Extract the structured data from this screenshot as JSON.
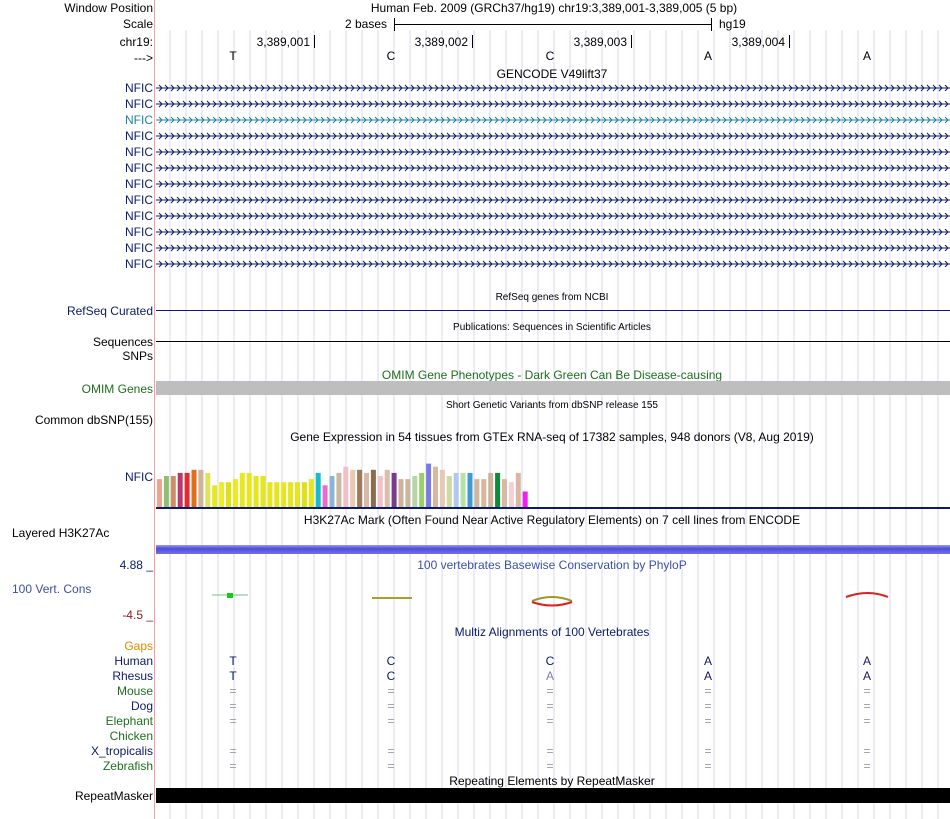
{
  "labels": {
    "window_position": "Window Position",
    "scale": "Scale",
    "chrom": "chr19:",
    "strand": "--->",
    "refseq": "RefSeq Curated",
    "sequences": "Sequences",
    "snps": "SNPs",
    "omim": "OMIM Genes",
    "dbsnp": "Common dbSNP(155)",
    "gtex_gene": "NFIC",
    "h3k27ac": "Layered H3K27Ac",
    "phylop_max": "4.88 _",
    "phylop_min": "-4.5 _",
    "cons": "100 Vert. Cons",
    "repeatmasker": "RepeatMasker"
  },
  "header": {
    "assembly": "Human Feb. 2009 (GRCh37/hg19)   chr19:3,389,001-3,389,005 (5 bp)",
    "scale_text": "2 bases",
    "db": "hg19",
    "ticks": [
      "3,389,001",
      "3,389,002",
      "3,389,003",
      "3,389,004"
    ],
    "bases": [
      "T",
      "C",
      "C",
      "A",
      "A"
    ]
  },
  "gencode": {
    "title": "GENCODE V49lift37",
    "transcripts": [
      "NFIC",
      "NFIC",
      "NFIC",
      "NFIC",
      "NFIC",
      "NFIC",
      "NFIC",
      "NFIC",
      "NFIC",
      "NFIC",
      "NFIC",
      "NFIC"
    ],
    "highlight_index": 2
  },
  "titles": {
    "refseq": "RefSeq genes from NCBI",
    "sequences": "Publications: Sequences in Scientific Articles",
    "omim": "OMIM Gene Phenotypes - Dark Green Can Be Disease-causing",
    "dbsnp": "Short Genetic Variants from dbSNP release 155",
    "gtex": "Gene Expression in 54 tissues from GTEx RNA-seq of 17382 samples, 948 donors (V8, Aug 2019)",
    "h3k27ac": "H3K27Ac Mark (Often Found Near Active Regulatory Elements) on 7 cell lines from ENCODE",
    "phylop": "100 vertebrates Basewise Conservation by PhyloP",
    "multiz": "Multiz Alignments of 100 Vertebrates",
    "repeatmasker": "Repeating Elements by RepeatMasker"
  },
  "gtex_bars": {
    "values": [
      0.45,
      0.5,
      0.5,
      0.55,
      0.55,
      0.6,
      0.6,
      0.55,
      0.35,
      0.4,
      0.4,
      0.45,
      0.55,
      0.55,
      0.5,
      0.5,
      0.4,
      0.4,
      0.4,
      0.4,
      0.4,
      0.4,
      0.45,
      0.55,
      0.35,
      0.5,
      0.55,
      0.65,
      0.6,
      0.6,
      0.55,
      0.6,
      0.5,
      0.6,
      0.55,
      0.45,
      0.45,
      0.5,
      0.55,
      0.7,
      0.65,
      0.6,
      0.5,
      0.55,
      0.55,
      0.55,
      0.45,
      0.45,
      0.55,
      0.55,
      0.45,
      0.4,
      0.55,
      0.25
    ],
    "colors": [
      "#f2a38c",
      "#8fbf6f",
      "#cc8f68",
      "#b8396c",
      "#e8282b",
      "#e06f1c",
      "#cfb29b",
      "#e3e35a",
      "#e8e81e",
      "#ecec2a",
      "#e0e016",
      "#eaea1e",
      "#e8e81e",
      "#e6e61c",
      "#e6e61c",
      "#e6e61c",
      "#e6e61c",
      "#e6e61c",
      "#e6e61c",
      "#e6e61c",
      "#e6e61c",
      "#e0e016",
      "#e6e61c",
      "#17bdc8",
      "#ea6bd0",
      "#8bb5d7",
      "#cdb79f",
      "#f2bfc8",
      "#e8c9b2",
      "#9c7a5a",
      "#d9b9a8",
      "#8a6c4e",
      "#f3c1c8",
      "#dabdaa",
      "#7c3a8c",
      "#cfb29b",
      "#cbb69c",
      "#b5d6ad",
      "#9ad06a",
      "#7a7ae0",
      "#d8b8a0",
      "#e8c8b4",
      "#cdd8a2",
      "#b0c8f0",
      "#b7e2a6",
      "#3d9bd1",
      "#d0b8a0",
      "#d8b79c",
      "#cfb39b",
      "#0d8a3a",
      "#d7b8a0",
      "#f2d0d4",
      "#d8b8a4",
      "#ee22ee"
    ]
  },
  "multiz": {
    "species": [
      "Gaps",
      "Human",
      "Rhesus",
      "Mouse",
      "Dog",
      "Elephant",
      "Chicken",
      "X_tropicalis",
      "Zebrafish"
    ],
    "species_colors": [
      "#e08a00",
      "#0b1b68",
      "#0b1b68",
      "#1e6e1e",
      "#0b1b68",
      "#1e6e1e",
      "#1e6e1e",
      "#0b1b68",
      "#1e6e1e"
    ],
    "human": [
      "T",
      "C",
      "C",
      "A",
      "A"
    ],
    "rhesus": [
      "T",
      "C",
      "A",
      "A",
      "A"
    ],
    "eq": "="
  }
}
